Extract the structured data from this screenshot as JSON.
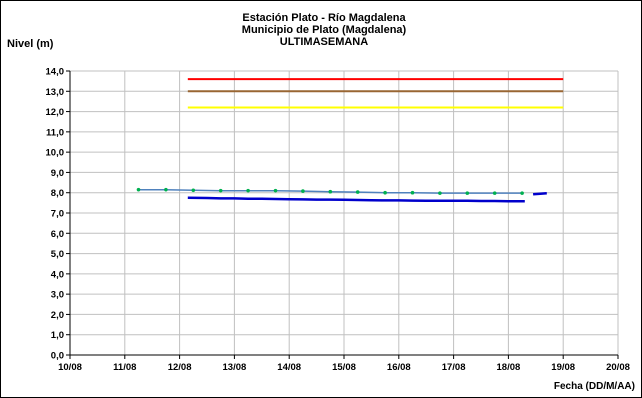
{
  "chart_data": {
    "type": "line",
    "title_lines": [
      "Estación Plato - Río Magdalena",
      "Municipio de Plato (Magdalena)",
      "ULTIMASEMANA"
    ],
    "ylabel": "Nivel (m)",
    "xlabel": "Fecha (DD/M/AA)",
    "ylim": [
      0,
      14
    ],
    "y_ticks": [
      "0,0",
      "1,0",
      "2,0",
      "3,0",
      "4,0",
      "5,0",
      "6,0",
      "7,0",
      "8,0",
      "9,0",
      "10,0",
      "11,0",
      "12,0",
      "13,0",
      "14,0"
    ],
    "x_ticks": [
      "10/08",
      "11/08",
      "12/08",
      "13/08",
      "14/08",
      "15/08",
      "16/08",
      "17/08",
      "18/08",
      "19/08",
      "20/08"
    ],
    "grid": true,
    "colors": {
      "red_line": "#ff0000",
      "brown_line": "#996633",
      "yellow_line": "#ffff00",
      "upper_series": "#4f81bd",
      "upper_markers": "#00b050",
      "lower_series": "#0000cc",
      "grid": "#c0c0c0"
    },
    "reference_lines": [
      {
        "id": "red",
        "y": 13.6,
        "x_start": 2.15,
        "x_end": 9.0
      },
      {
        "id": "brown",
        "y": 13.0,
        "x_start": 2.15,
        "x_end": 9.0
      },
      {
        "id": "yellow",
        "y": 12.2,
        "x_start": 2.15,
        "x_end": 9.0
      }
    ],
    "series": [
      {
        "id": "upper",
        "x": [
          1.25,
          1.75,
          2.25,
          2.75,
          3.25,
          3.75,
          4.25,
          4.75,
          5.25,
          5.75,
          6.25,
          6.75,
          7.25,
          7.75,
          8.25
        ],
        "values": [
          8.15,
          8.15,
          8.12,
          8.1,
          8.1,
          8.1,
          8.08,
          8.05,
          8.03,
          8.0,
          8.0,
          7.98,
          7.98,
          7.98,
          7.98
        ]
      },
      {
        "id": "lower",
        "x": [
          2.15,
          2.5,
          2.75,
          3.0,
          3.25,
          3.5,
          3.75,
          4.0,
          4.25,
          4.5,
          4.75,
          5.0,
          5.25,
          5.5,
          5.75,
          6.0,
          6.25,
          6.5,
          6.75,
          7.0,
          7.25,
          7.5,
          7.75,
          8.0,
          8.3
        ],
        "values": [
          7.75,
          7.74,
          7.72,
          7.72,
          7.7,
          7.7,
          7.69,
          7.68,
          7.67,
          7.66,
          7.66,
          7.65,
          7.64,
          7.63,
          7.62,
          7.62,
          7.61,
          7.6,
          7.6,
          7.6,
          7.6,
          7.59,
          7.59,
          7.58,
          7.58
        ]
      },
      {
        "id": "lower-tail",
        "x": [
          8.45,
          8.55,
          8.7
        ],
        "values": [
          7.92,
          7.94,
          7.97
        ]
      }
    ]
  }
}
